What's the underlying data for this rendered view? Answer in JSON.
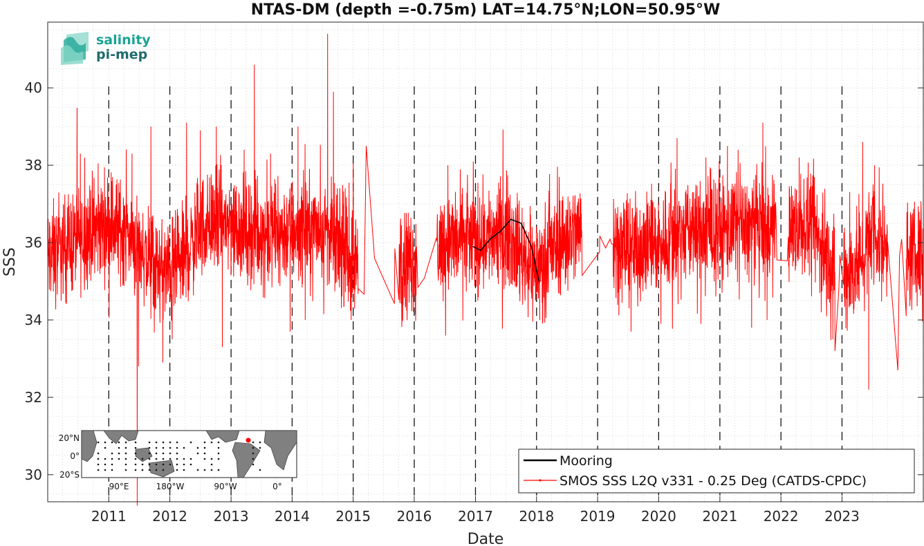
{
  "chart_data": {
    "type": "line",
    "title": "NTAS-DM (depth =-0.75m) LAT=14.75°N;LON=50.95°W",
    "xlabel": "Date",
    "ylabel": "SSS",
    "xlim": [
      "2010-01-01",
      "2024-05-01"
    ],
    "ylim": [
      29.3,
      41.7
    ],
    "x_tick_labels": [
      "2011",
      "2012",
      "2013",
      "2014",
      "2015",
      "2016",
      "2017",
      "2018",
      "2019",
      "2020",
      "2021",
      "2022",
      "2023"
    ],
    "y_ticks": [
      30,
      32,
      34,
      36,
      38,
      40
    ],
    "y_tick_labels": [
      "30",
      "32",
      "34",
      "36",
      "38",
      "40"
    ],
    "grid": "dotted minor grid",
    "year_marker_dates": [
      "2011-01-01",
      "2012-01-01",
      "2013-01-01",
      "2014-01-01",
      "2015-01-01",
      "2016-01-01",
      "2017-01-01",
      "2018-01-01",
      "2019-01-01",
      "2020-01-01",
      "2021-01-01",
      "2022-01-01",
      "2023-01-01"
    ],
    "legend": {
      "position": "bottom-right",
      "entries": [
        {
          "label": "Mooring",
          "color": "#000000"
        },
        {
          "label": "SMOS SSS L2Q v331 - 0.25 Deg (CATDS-CPDC)",
          "color": "#ff0000"
        }
      ]
    },
    "series": [
      {
        "name": "Mooring",
        "color": "#000000",
        "points": [
          [
            "2016-12-15",
            35.9
          ],
          [
            "2017-02-01",
            35.8
          ],
          [
            "2017-04-01",
            36.1
          ],
          [
            "2017-06-01",
            36.3
          ],
          [
            "2017-08-01",
            36.6
          ],
          [
            "2017-10-01",
            36.5
          ],
          [
            "2017-12-01",
            35.9
          ],
          [
            "2018-01-15",
            35.0
          ]
        ]
      },
      {
        "name": "SMOS SSS L2Q v331 - 0.25 Deg (CATDS-CPDC)",
        "color": "#ff0000",
        "baseline": [
          [
            "2010-01-01",
            35.6
          ],
          [
            "2010-07-01",
            36.1
          ],
          [
            "2011-01-01",
            36.5
          ],
          [
            "2011-04-01",
            36.3
          ],
          [
            "2011-07-01",
            35.9
          ],
          [
            "2011-10-01",
            35.3
          ],
          [
            "2012-01-01",
            35.2
          ],
          [
            "2012-04-01",
            35.6
          ],
          [
            "2012-07-01",
            36.4
          ],
          [
            "2012-10-01",
            36.6
          ],
          [
            "2013-01-01",
            36.5
          ],
          [
            "2013-07-01",
            36.2
          ],
          [
            "2014-01-01",
            36.3
          ],
          [
            "2014-07-01",
            36.4
          ],
          [
            "2015-01-01",
            35.5
          ],
          [
            "2015-07-01",
            35.6
          ],
          [
            "2016-01-01",
            35.5
          ],
          [
            "2016-07-01",
            36.0
          ],
          [
            "2017-01-01",
            36.1
          ],
          [
            "2017-07-01",
            36.3
          ],
          [
            "2017-12-15",
            35.3
          ],
          [
            "2018-03-01",
            35.6
          ],
          [
            "2018-07-01",
            36.2
          ],
          [
            "2019-01-01",
            36.4
          ],
          [
            "2019-07-01",
            35.8
          ],
          [
            "2020-01-01",
            36.0
          ],
          [
            "2020-07-01",
            36.3
          ],
          [
            "2021-01-01",
            36.3
          ],
          [
            "2021-07-01",
            36.4
          ],
          [
            "2022-01-01",
            36.3
          ],
          [
            "2022-07-01",
            36.4
          ],
          [
            "2022-12-01",
            35.2
          ],
          [
            "2023-03-01",
            35.2
          ],
          [
            "2023-07-01",
            36.2
          ],
          [
            "2024-01-01",
            35.6
          ],
          [
            "2024-05-01",
            35.7
          ]
        ],
        "spikes": [
          [
            "2010-07-15",
            38.3
          ],
          [
            "2010-08-10",
            38.2
          ],
          [
            "2011-05-20",
            38.3
          ],
          [
            "2011-06-20",
            29.2
          ],
          [
            "2011-06-28",
            32.8
          ],
          [
            "2011-09-10",
            39.0
          ],
          [
            "2011-11-20",
            32.9
          ],
          [
            "2012-01-15",
            33.5
          ],
          [
            "2012-04-10",
            39.1
          ],
          [
            "2012-07-01",
            38.9
          ],
          [
            "2012-10-05",
            39.0
          ],
          [
            "2012-11-10",
            33.3
          ],
          [
            "2013-03-20",
            38.4
          ],
          [
            "2013-05-20",
            40.6
          ],
          [
            "2013-08-25",
            38.3
          ],
          [
            "2013-12-20",
            33.7
          ],
          [
            "2014-02-05",
            39.0
          ],
          [
            "2014-03-20",
            34.0
          ],
          [
            "2014-08-01",
            41.4
          ],
          [
            "2014-09-05",
            39.9
          ],
          [
            "2014-12-20",
            34.0
          ],
          [
            "2015-03-20",
            38.5
          ],
          [
            "2016-07-20",
            38.0
          ],
          [
            "2017-01-15",
            34.5
          ],
          [
            "2018-01-20",
            34.0
          ],
          [
            "2019-07-20",
            33.7
          ],
          [
            "2020-01-15",
            33.9
          ],
          [
            "2020-04-20",
            38.7
          ],
          [
            "2020-09-10",
            33.9
          ],
          [
            "2021-02-15",
            38.5
          ],
          [
            "2021-04-20",
            38.4
          ],
          [
            "2021-07-10",
            33.8
          ],
          [
            "2021-09-15",
            39.1
          ],
          [
            "2021-10-10",
            34.0
          ],
          [
            "2022-04-20",
            38.2
          ],
          [
            "2022-11-20",
            33.2
          ],
          [
            "2023-05-05",
            38.6
          ],
          [
            "2023-06-10",
            32.2
          ],
          [
            "2023-07-15",
            38.0
          ],
          [
            "2023-12-01",
            32.7
          ],
          [
            "2024-01-20",
            34.1
          ]
        ],
        "gaps": [
          [
            "2015-02-01",
            "2015-10-01"
          ],
          [
            "2016-01-15",
            "2016-05-15"
          ],
          [
            "2018-10-01",
            "2019-04-01"
          ],
          [
            "2021-12-01",
            "2022-02-15"
          ],
          [
            "2022-11-20",
            "2023-01-10"
          ],
          [
            "2023-10-01",
            "2024-01-20"
          ]
        ]
      }
    ]
  },
  "logo": {
    "line1": "salinity",
    "line2": "pi-mep",
    "color": "#1aa394",
    "dark_color": "#1f6a6e"
  },
  "inset_map": {
    "x_tick_labels": [
      "90°E",
      "180°W",
      "90°W",
      "0°"
    ],
    "y_tick_labels": [
      "20°N",
      "0°",
      "20°S"
    ],
    "station_lat": 14.75,
    "station_lon": -50.95,
    "station_color": "#ff0000"
  }
}
